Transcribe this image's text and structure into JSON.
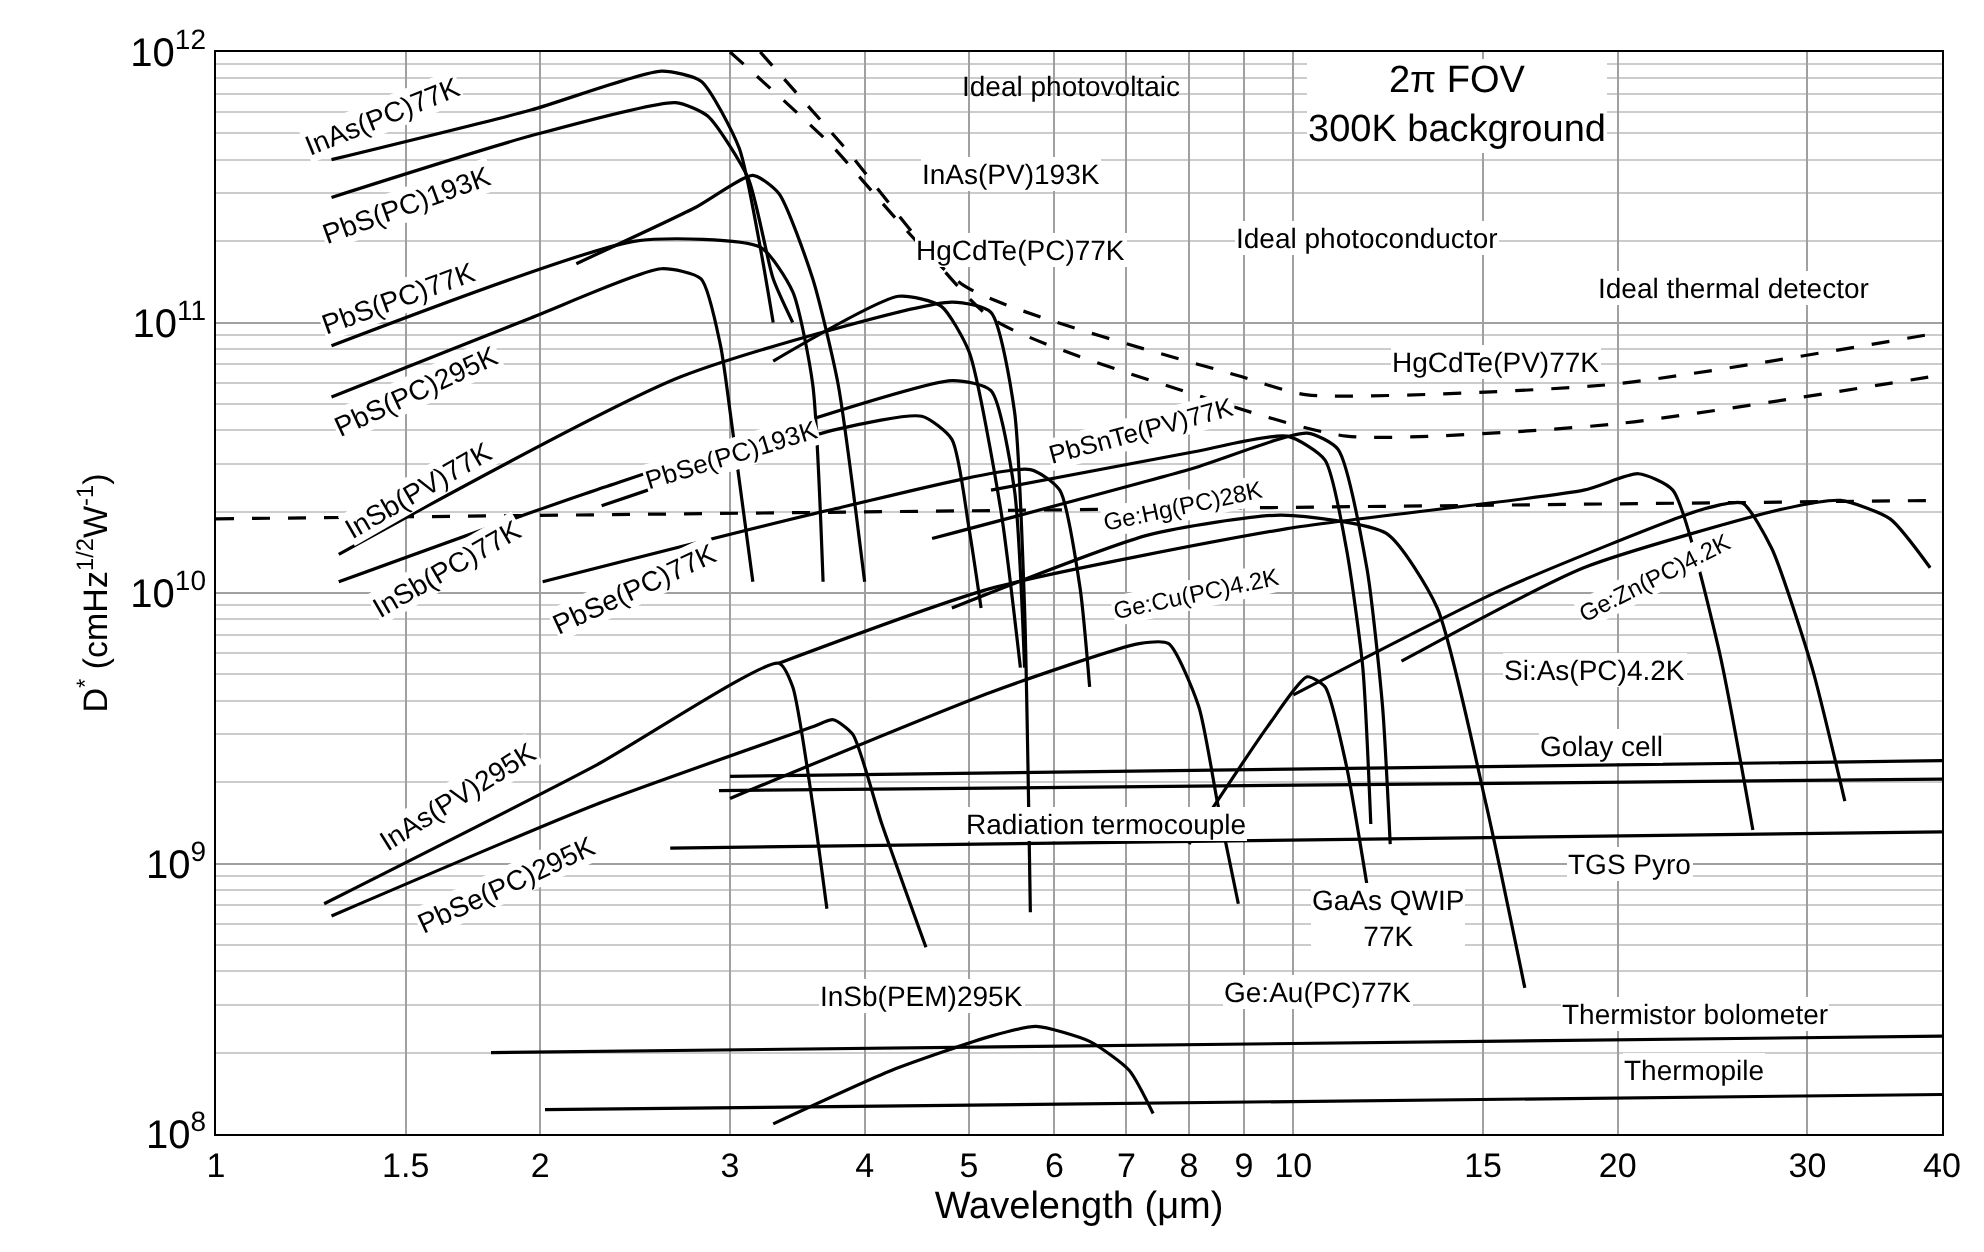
{
  "chart_data": {
    "type": "line",
    "xlabel": "Wavelength (μm)",
    "ylabel": "D$^{*}$ (cmHz$^{1/2}$W$^{-1}$)",
    "log": "xy",
    "grid": true,
    "line_style": "solid",
    "xlim": [
      1,
      40
    ],
    "ylim": [
      100000000.0,
      1000000000000.0
    ],
    "xticks": [
      1,
      1.5,
      2,
      3,
      4,
      5,
      6,
      7,
      8,
      9,
      10,
      15,
      20,
      30,
      40
    ],
    "yticks": [
      {
        "value": 100000000.0,
        "label": "10$^{8}$"
      },
      {
        "value": 1000000000.0,
        "label": "10$^{9}$"
      },
      {
        "value": 10000000000.0,
        "label": "10$^{10}$"
      },
      {
        "value": 100000000000.0,
        "label": "10$^{11}$"
      },
      {
        "value": 1000000000000.0,
        "label": "10$^{12}$"
      }
    ],
    "series": [
      {
        "color": "#000000",
        "x": [
          1.28,
          1.96,
          2.59,
          2.82,
          3.06,
          3.2,
          3.29
        ],
        "values": [
          400000000000.0,
          610000000000.0,
          850000000000.0,
          780000000000.0,
          440000000000.0,
          190000000000.0,
          100000000000.0
        ]
      },
      {
        "color": "#000000",
        "x": [
          1.28,
          1.96,
          2.67,
          2.86,
          3.12,
          3.29,
          3.43
        ],
        "values": [
          290000000000.0,
          490000000000.0,
          650000000000.0,
          580000000000.0,
          340000000000.0,
          145000000000.0,
          100000000000.0
        ]
      },
      {
        "color": "#000000",
        "x": [
          1.28,
          2.45,
          3.2,
          3.43,
          3.58,
          3.66
        ],
        "values": [
          82000000000.0,
          200000000000.0,
          190000000000.0,
          130000000000.0,
          59000000000.0,
          11000000000.0
        ]
      },
      {
        "color": "#000000",
        "x": [
          2.16,
          2.78,
          3.15,
          3.33,
          3.58,
          3.78,
          4.0
        ],
        "values": [
          165000000000.0,
          265000000000.0,
          350000000000.0,
          300000000000.0,
          145000000000.0,
          59000000000.0,
          11000000000.0
        ]
      },
      {
        "color": "#000000",
        "x": [
          1.28,
          1.96,
          2.59,
          2.82,
          2.94,
          3.0,
          3.15
        ],
        "values": [
          53000000000.0,
          104000000000.0,
          158000000000.0,
          145000000000.0,
          82000000000.0,
          47000000000.0,
          11000000000.0
        ]
      },
      {
        "color": "#000000",
        "x": [
          1.3,
          2.7,
          4.82,
          5.24,
          5.51,
          5.63,
          5.7
        ],
        "values": [
          13900000000.0,
          63000000000.0,
          119000000000.0,
          109000000000.0,
          47000000000.0,
          8800000000.0,
          660000000.0
        ]
      },
      {
        "color": "#000000",
        "x": [
          1.3,
          2.25,
          4.82,
          5.24,
          5.51,
          5.63
        ],
        "values": [
          11000000000.0,
          24000000000.0,
          61000000000.0,
          56000000000.0,
          24000000000.0,
          5300000000.0
        ]
      },
      {
        "color": "#000000",
        "x": [
          2.28,
          3.74,
          4.52,
          4.82,
          5.0,
          5.13
        ],
        "values": [
          21000000000.0,
          40000000000.0,
          45000000000.0,
          37000000000.0,
          17300000000.0,
          8800000000.0
        ]
      },
      {
        "color": "#000000",
        "x": [
          2.01,
          3.74,
          5.7,
          6.07,
          6.34,
          6.47
        ],
        "values": [
          11000000000.0,
          20400000000.0,
          28600000000.0,
          24000000000.0,
          10400000000.0,
          4500000000.0
        ]
      },
      {
        "color": "#000000",
        "x": [
          3.29,
          4.3,
          4.71,
          5.0,
          5.35,
          5.58
        ],
        "values": [
          72000000000.0,
          125000000000.0,
          115000000000.0,
          78000000000.0,
          20400000000.0,
          5300000000.0
        ]
      },
      {
        "color": "#000000",
        "x": [
          5.24,
          8.0,
          9.87,
          10.7,
          11.2,
          11.6,
          11.8
        ],
        "values": [
          24000000000.0,
          33000000000.0,
          38000000000.0,
          31000000000.0,
          14600000000.0,
          5300000000.0,
          1400000000.0
        ]
      },
      {
        "color": "#000000",
        "x": [
          4.62,
          8.0,
          10.3,
          11.0,
          11.7,
          12.1,
          12.3
        ],
        "values": [
          15900000000.0,
          28600000000.0,
          39000000000.0,
          34000000000.0,
          12400000000.0,
          3800000000.0,
          1180000000.0
        ]
      },
      {
        "color": "#000000",
        "x": [
          4.82,
          7.34,
          9.75,
          12.2,
          13.6,
          15.1,
          16.4
        ],
        "values": [
          8800000000.0,
          16400000000.0,
          19400000000.0,
          16600000000.0,
          8800000000.0,
          1650000000.0,
          347000000.0
        ]
      },
      {
        "color": "#000000",
        "x": [
          3.33,
          5.24,
          9.87,
          18.6,
          20.9,
          22.5,
          24.8,
          26.7
        ],
        "values": [
          5500000000.0,
          10400000000.0,
          17300000000.0,
          24000000000.0,
          27600000000.0,
          24000000000.0,
          6300000000.0,
          1330000000.0
        ]
      },
      {
        "color": "#000000",
        "x": [
          12.6,
          18.6,
          28.4,
          32.2,
          35.8,
          39
        ],
        "values": [
          5600000000.0,
          12400000000.0,
          20400000000.0,
          22000000000.0,
          18800000000.0,
          12400000000.0
        ]
      },
      {
        "color": "#000000",
        "x": [
          10.0,
          15.7,
          24,
          26.1,
          27.8,
          30.3,
          32.5
        ],
        "values": [
          4200000000.0,
          10400000000.0,
          20400000000.0,
          21500000000.0,
          14600000000.0,
          5300000000.0,
          1700000000.0
        ]
      },
      {
        "color": "#000000",
        "x": [
          8.0,
          9.46,
          10.3,
          10.7,
          11.2,
          11.7
        ],
        "values": [
          1180000000.0,
          3200000000.0,
          4900000000.0,
          4500000000.0,
          2300000000.0,
          840000000.0
        ]
      },
      {
        "color": "#000000",
        "x": [
          3.0,
          5.24,
          7.19,
          7.66,
          8.17,
          8.51,
          8.89
        ],
        "values": [
          1740000000.0,
          4300000000.0,
          6500000000.0,
          6500000000.0,
          3800000000.0,
          1650000000.0,
          710000000.0
        ]
      },
      {
        "color": "#000000",
        "x": [
          1.26,
          2.25,
          3.33,
          3.43,
          3.58,
          3.69
        ],
        "values": [
          710000000.0,
          2300000000.0,
          5500000000.0,
          4500000000.0,
          1650000000.0,
          680000000.0
        ]
      },
      {
        "color": "#000000",
        "x": [
          1.28,
          2.25,
          3.58,
          3.74,
          3.9,
          4.15,
          4.56
        ],
        "values": [
          640000000.0,
          1650000000.0,
          3200000000.0,
          3400000000.0,
          3000000000.0,
          1400000000.0,
          490000000.0
        ]
      },
      {
        "color": "#000000",
        "x": [
          3.29,
          4.24,
          5.24,
          5.77,
          6.47,
          7.04,
          7.41
        ],
        "values": [
          109000000.0,
          172000000.0,
          230000000.0,
          250000000.0,
          220000000.0,
          172000000.0,
          119000000.0
        ]
      },
      {
        "color": "#000000",
        "x": [
          3.0,
          40
        ],
        "values": [
          2100000000.0,
          2400000000.0
        ]
      },
      {
        "color": "#000000",
        "x": [
          2.93,
          40
        ],
        "values": [
          1860000000.0,
          2050000000.0
        ]
      },
      {
        "color": "#000000",
        "x": [
          2.64,
          40
        ],
        "values": [
          1140000000.0,
          1310000000.0
        ]
      },
      {
        "color": "#000000",
        "x": [
          1.8,
          40
        ],
        "values": [
          200000000.0,
          230000000.0
        ]
      },
      {
        "color": "#000000",
        "x": [
          2.02,
          40
        ],
        "values": [
          123000000.0,
          140000000.0
        ]
      },
      {
        "color": "#000000",
        "line_style": "dashed",
        "x": [
          1,
          40
        ],
        "values": [
          18800000000.0,
          22000000000.0
        ]
      },
      {
        "color": "#000000",
        "line_style": "dashed",
        "x": [
          3.0,
          3.69,
          4.96,
          8.96,
          10.3,
          19.7,
          40
        ],
        "values": [
          1000000000000.0,
          470000000000.0,
          136000000000.0,
          63000000000.0,
          54000000000.0,
          59000000000.0,
          92000000000.0
        ]
      },
      {
        "color": "#000000",
        "line_style": "dashed",
        "x": [
          3.2,
          3.82,
          5.24,
          8.24,
          11.2,
          19.7,
          40
        ],
        "values": [
          1000000000000.0,
          450000000000.0,
          104000000000.0,
          53000000000.0,
          38000000000.0,
          42000000000.0,
          64000000000.0
        ]
      }
    ],
    "annotations": [
      "Ideal photovoltaic",
      "2π FOV\n300K background",
      "InAs(PV)193K",
      "HgCdTe(PC)77K",
      "Ideal photoconductor",
      "Ideal thermal detector",
      "HgCdTe(PV)77K",
      "InAs(PC)77K",
      "PbS(PC)193K",
      "PbS(PC)77K",
      "PbS(PC)295K",
      "InSb(PV)77K",
      "InSb(PC)77K",
      "PbSe(PC)193K",
      "PbSe(PC)77K",
      "PbSnTe(PV)77K",
      "Ge:Hg(PC)28K",
      "Ge:Cu(PC)4.2K",
      "Ge:Zn(PC)4.2K",
      "Si:As(PC)4.2K",
      "Golay cell",
      "Radiation termocouple",
      "TGS Pyro",
      "GaAs QWIP\n77K",
      "Ge:Au(PC)77K",
      "InSb(PEM)295K",
      "InAs(PV)295K",
      "PbSe(PC)295K",
      "Thermistor bolometer",
      "Thermopile"
    ]
  }
}
